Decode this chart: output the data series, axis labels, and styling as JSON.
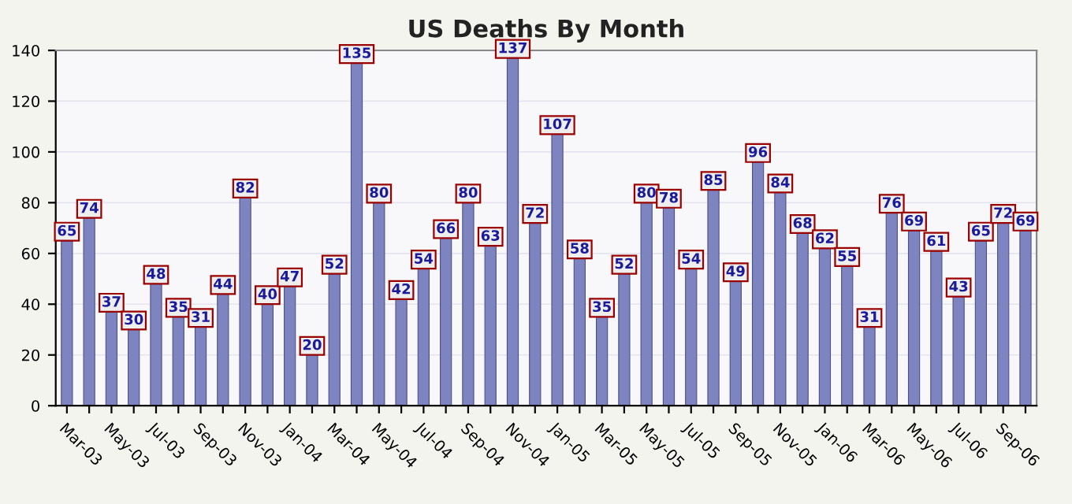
{
  "chart_data": {
    "type": "bar",
    "title": "US Deaths By Month",
    "categories": [
      "Mar-03",
      null,
      "May-03",
      null,
      "Jul-03",
      null,
      "Sep-03",
      null,
      "Nov-03",
      null,
      "Jan-04",
      null,
      "Mar-04",
      null,
      "May-04",
      null,
      "Jul-04",
      null,
      "Sep-04",
      null,
      "Nov-04",
      null,
      "Jan-05",
      null,
      "Mar-05",
      null,
      "May-05",
      null,
      "Jul-05",
      null,
      "Sep-05",
      null,
      "Nov-05",
      null,
      "Jan-06",
      null,
      "Mar-06",
      null,
      "May-06",
      null,
      "Jul-06",
      null,
      "Sep-06",
      null
    ],
    "values": [
      65,
      74,
      37,
      30,
      48,
      35,
      31,
      44,
      82,
      40,
      47,
      20,
      52,
      135,
      80,
      42,
      54,
      66,
      80,
      63,
      137,
      72,
      107,
      58,
      35,
      52,
      80,
      78,
      54,
      85,
      49,
      96,
      84,
      68,
      62,
      55,
      31,
      76,
      69,
      61,
      43,
      65,
      72,
      69
    ],
    "color": "#7e84bf",
    "ylim": [
      0,
      140
    ],
    "yticks": [
      0,
      20,
      40,
      60,
      80,
      100,
      120,
      140
    ],
    "grid": "y",
    "data_labels": true
  }
}
